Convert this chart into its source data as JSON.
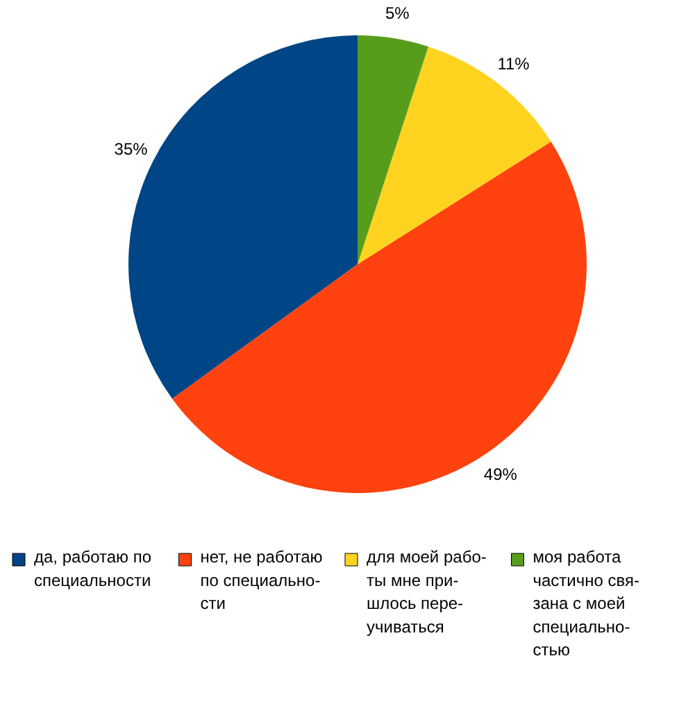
{
  "chart_data": {
    "type": "pie",
    "categories": [
      "да, работаю по\nспециальности",
      "нет, не работаю\nпо специально-\nсти",
      "для моей рабо-\nты мне при-\nшлось пере-\nучиваться",
      "моя работа\nчастично свя-\nзана с моей\nспециально-\nстью"
    ],
    "values": [
      35,
      49,
      11,
      5
    ],
    "colors": [
      "#004586",
      "#ff420e",
      "#ffd320",
      "#579d1c"
    ],
    "value_labels": [
      "35%",
      "49%",
      "11%",
      "5%"
    ],
    "legend": "bottom"
  }
}
